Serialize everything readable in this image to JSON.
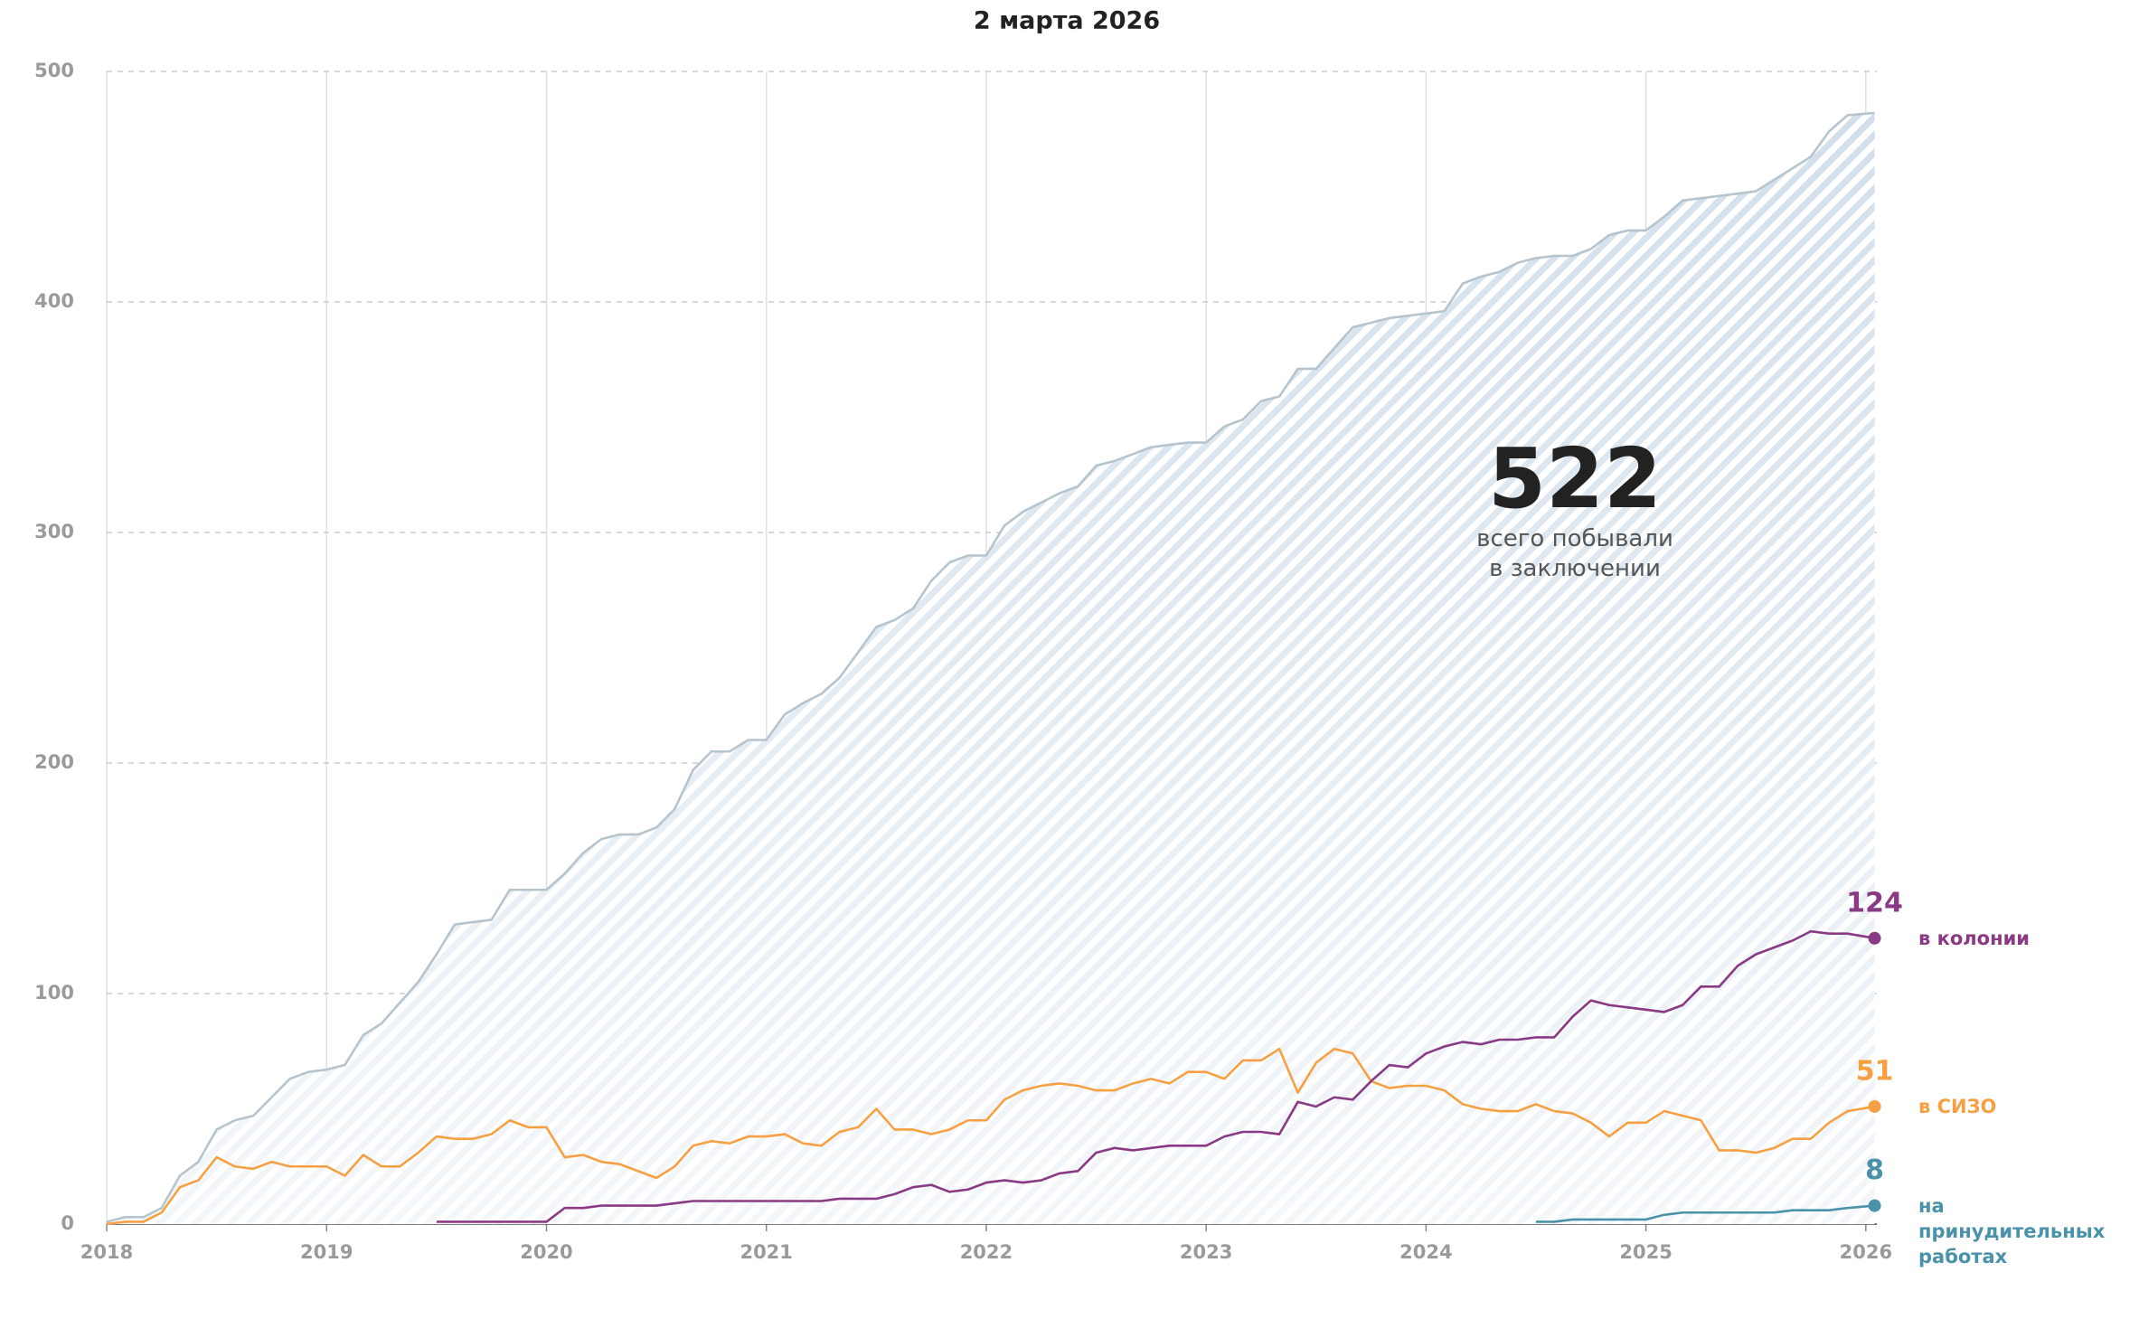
{
  "chart_data": {
    "type": "line",
    "title": "2 марта 2026",
    "x": [
      2018,
      2018.083,
      2018.167,
      2018.25,
      2018.333,
      2018.417,
      2018.5,
      2018.583,
      2018.667,
      2018.75,
      2018.833,
      2018.917,
      2019,
      2019.083,
      2019.167,
      2019.25,
      2019.333,
      2019.417,
      2019.5,
      2019.583,
      2019.667,
      2019.75,
      2019.833,
      2019.917,
      2020,
      2020.083,
      2020.167,
      2020.25,
      2020.333,
      2020.417,
      2020.5,
      2020.583,
      2020.667,
      2020.75,
      2020.833,
      2020.917,
      2021,
      2021.083,
      2021.167,
      2021.25,
      2021.333,
      2021.417,
      2021.5,
      2021.583,
      2021.667,
      2021.75,
      2021.833,
      2021.917,
      2022,
      2022.083,
      2022.167,
      2022.25,
      2022.333,
      2022.417,
      2022.5,
      2022.583,
      2022.667,
      2022.75,
      2022.833,
      2022.917,
      2023,
      2023.083,
      2023.167,
      2023.25,
      2023.333,
      2023.417,
      2023.5,
      2023.583,
      2023.667,
      2023.75,
      2023.833,
      2023.917,
      2024,
      2024.083,
      2024.167,
      2024.25,
      2024.333,
      2024.417,
      2024.5,
      2024.583,
      2024.667,
      2024.75,
      2024.833,
      2024.917,
      2025,
      2025.083,
      2025.167,
      2025.25,
      2025.333,
      2025.417,
      2025.5,
      2025.583,
      2025.667,
      2025.75,
      2025.833,
      2025.917,
      2026.04
    ],
    "series": [
      {
        "color": "#b6c4cd",
        "area": true,
        "values": [
          1,
          3,
          3,
          7,
          21,
          27,
          41,
          45,
          47,
          55,
          63,
          66,
          67,
          69,
          82,
          87,
          96,
          105,
          117,
          130,
          131,
          132,
          145,
          145,
          145,
          152,
          161,
          167,
          169,
          169,
          172,
          180,
          197,
          205,
          205,
          210,
          210,
          221,
          226,
          230,
          237,
          248,
          259,
          262,
          267,
          279,
          287,
          290,
          290,
          303,
          309,
          313,
          317,
          320,
          329,
          331,
          334,
          337,
          338,
          339,
          339,
          346,
          349,
          357,
          359,
          371,
          371,
          380,
          389,
          391,
          393,
          394,
          395,
          396,
          408,
          411,
          413,
          417,
          419,
          420,
          420,
          423,
          429,
          431,
          431,
          437,
          444,
          445,
          446,
          447,
          448,
          453,
          458,
          463,
          474,
          481,
          482
        ]
      },
      {
        "name": "в СИЗО",
        "color": "#f6a043",
        "values": [
          0,
          1,
          1,
          5,
          16,
          19,
          29,
          25,
          24,
          27,
          25,
          25,
          25,
          21,
          30,
          25,
          25,
          31,
          38,
          37,
          37,
          39,
          45,
          42,
          42,
          29,
          30,
          27,
          26,
          23,
          20,
          25,
          34,
          36,
          35,
          38,
          38,
          39,
          35,
          34,
          40,
          42,
          50,
          41,
          41,
          39,
          41,
          45,
          45,
          54,
          58,
          60,
          61,
          60,
          58,
          58,
          61,
          63,
          61,
          66,
          66,
          63,
          71,
          71,
          76,
          57,
          70,
          76,
          74,
          62,
          59,
          60,
          60,
          58,
          52,
          50,
          49,
          49,
          52,
          49,
          48,
          44,
          38,
          44,
          44,
          49,
          47,
          45,
          32,
          32,
          31,
          33,
          37,
          37,
          44,
          49,
          51
        ]
      },
      {
        "name": "в колонии",
        "color": "#8a3a85",
        "values": [
          null,
          null,
          null,
          null,
          null,
          null,
          null,
          null,
          null,
          null,
          null,
          null,
          null,
          null,
          null,
          null,
          null,
          null,
          1,
          1,
          1,
          1,
          1,
          1,
          1,
          7,
          7,
          8,
          8,
          8,
          8,
          9,
          10,
          10,
          10,
          10,
          10,
          10,
          10,
          10,
          11,
          11,
          11,
          13,
          16,
          17,
          14,
          15,
          18,
          19,
          18,
          19,
          22,
          23,
          31,
          33,
          32,
          33,
          34,
          34,
          34,
          38,
          40,
          40,
          39,
          53,
          51,
          55,
          54,
          62,
          69,
          68,
          74,
          77,
          79,
          78,
          80,
          80,
          81,
          81,
          90,
          97,
          95,
          94,
          93,
          92,
          95,
          103,
          103,
          112,
          117,
          120,
          123,
          127,
          126,
          126,
          124
        ]
      },
      {
        "name": "на принудительных работах",
        "color": "#4a92a9",
        "values": [
          null,
          null,
          null,
          null,
          null,
          null,
          null,
          null,
          null,
          null,
          null,
          null,
          null,
          null,
          null,
          null,
          null,
          null,
          null,
          null,
          null,
          null,
          null,
          null,
          null,
          null,
          null,
          null,
          null,
          null,
          null,
          null,
          null,
          null,
          null,
          null,
          null,
          null,
          null,
          null,
          null,
          null,
          null,
          null,
          null,
          null,
          null,
          null,
          null,
          null,
          null,
          null,
          null,
          null,
          null,
          null,
          null,
          null,
          null,
          null,
          null,
          null,
          null,
          null,
          null,
          null,
          null,
          null,
          null,
          null,
          null,
          null,
          null,
          null,
          null,
          null,
          null,
          null,
          1,
          1,
          2,
          2,
          2,
          2,
          2,
          4,
          5,
          5,
          5,
          5,
          5,
          5,
          6,
          6,
          6,
          7,
          8
        ]
      }
    ],
    "xlim": [
      2018,
      2026.05
    ],
    "xticks": [
      2018,
      2019,
      2020,
      2021,
      2022,
      2023,
      2024,
      2025,
      2026
    ],
    "ylim": [
      0,
      500
    ],
    "yticks": [
      0,
      100,
      200,
      300,
      400,
      500
    ],
    "grid": true,
    "annotation": {
      "number": "522",
      "text": "всего побывали в заключении"
    }
  }
}
